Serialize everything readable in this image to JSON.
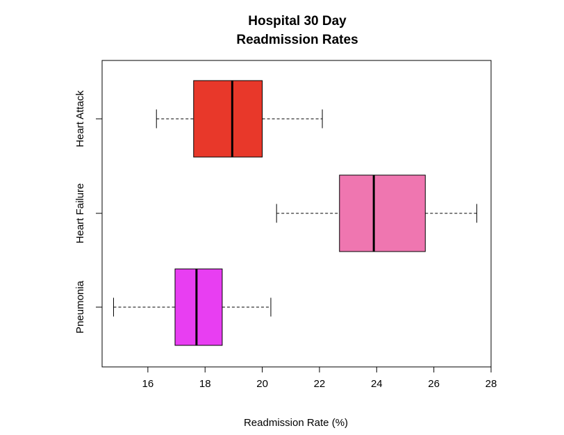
{
  "chart_data": {
    "type": "boxplot",
    "orientation": "horizontal",
    "title": [
      "Hospital 30 Day",
      "Readmission Rates"
    ],
    "xlabel": "Readmission Rate (%)",
    "ylabel": "",
    "xlim": [
      14.4,
      28
    ],
    "xticks": [
      16,
      18,
      20,
      22,
      24,
      26,
      28
    ],
    "grid": false,
    "categories": [
      "Heart Attack",
      "Heart Failure",
      "Pneumonia"
    ],
    "series": [
      {
        "category": "Heart Attack",
        "min": 16.3,
        "q1": 17.6,
        "median": 18.95,
        "q3": 20.0,
        "max": 22.1,
        "color": "#e8382a"
      },
      {
        "category": "Heart Failure",
        "min": 20.5,
        "q1": 22.7,
        "median": 23.9,
        "q3": 25.7,
        "max": 27.5,
        "color": "#ef76b0"
      },
      {
        "category": "Pneumonia",
        "min": 14.8,
        "q1": 16.95,
        "median": 17.7,
        "q3": 18.6,
        "max": 20.3,
        "color": "#e83ef2"
      }
    ]
  }
}
